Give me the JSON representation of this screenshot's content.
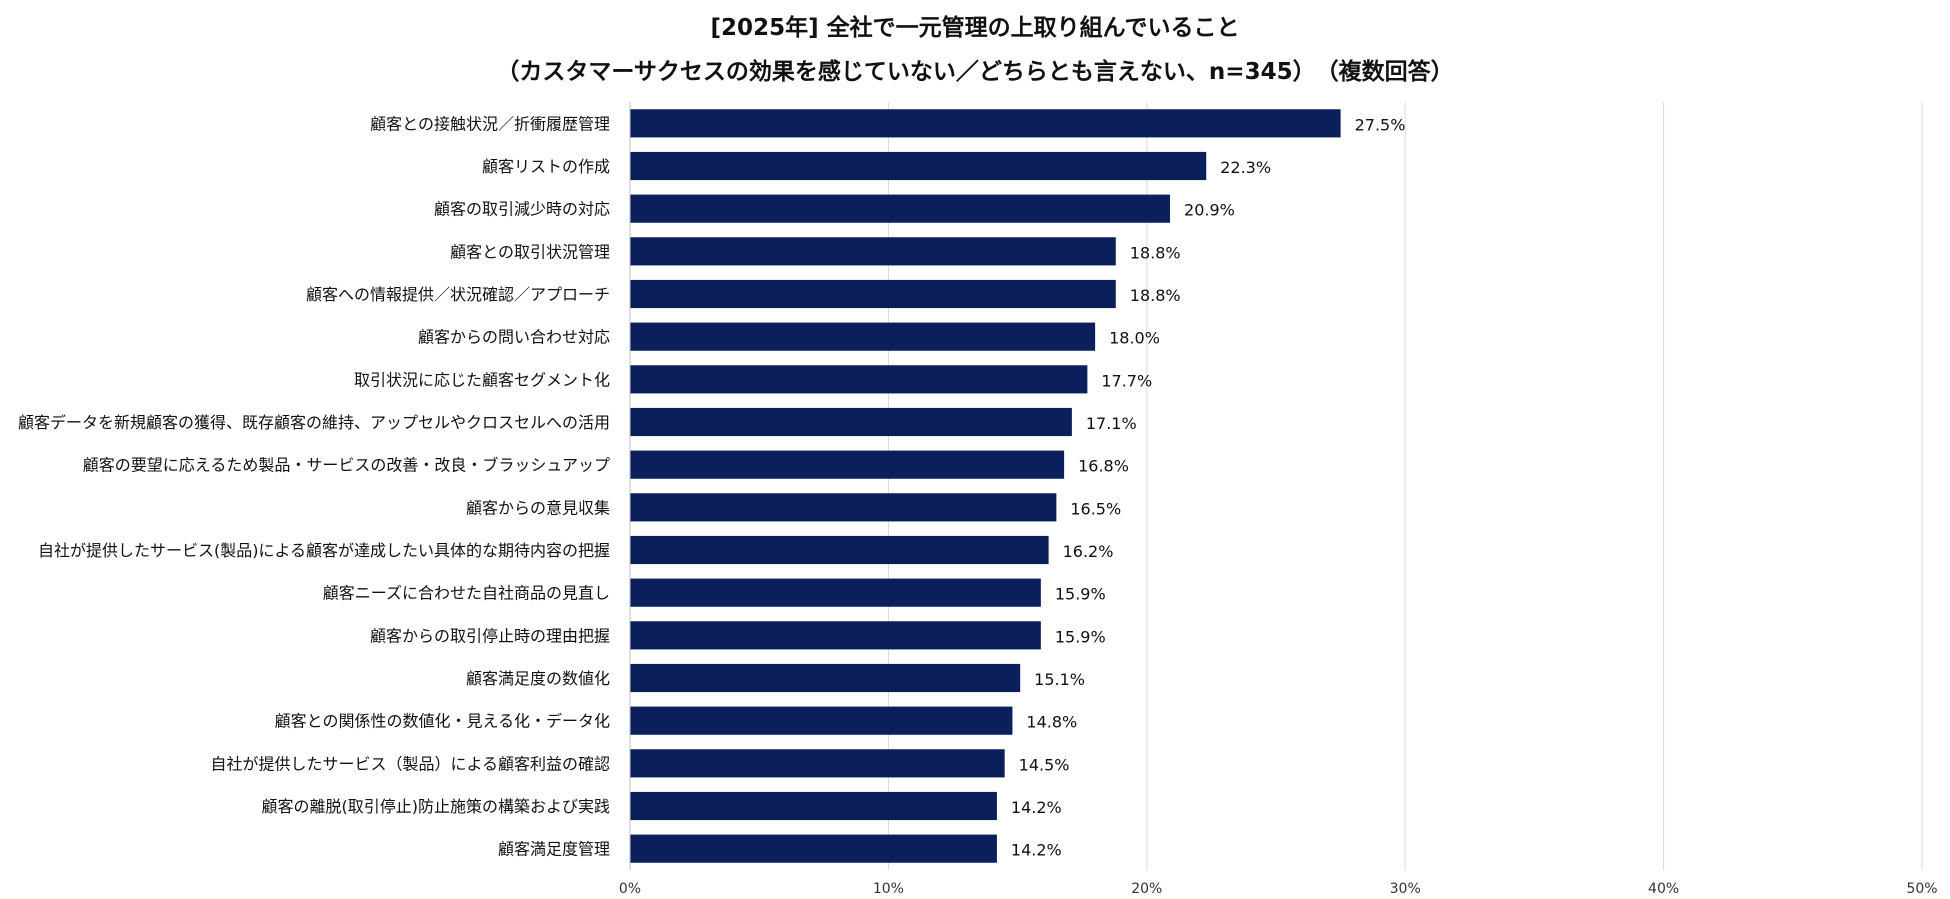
{
  "chart_data": {
    "type": "bar",
    "orientation": "horizontal",
    "title": "[2025年] 全社で一元管理の上取り組んでいること",
    "subtitle": "（カスタマーサクセスの効果を感じていない／どちらとも言えない、n=345）　（複数回答）",
    "categories": [
      "顧客との接触状況／折衝履歴管理",
      "顧客リストの作成",
      "顧客の取引減少時の対応",
      "顧客との取引状況管理",
      "顧客への情報提供／状況確認／アプローチ",
      "顧客からの問い合わせ対応",
      "取引状況に応じた顧客セグメント化",
      "顧客データを新規顧客の獲得、既存顧客の維持、アップセルやクロスセルへの活用",
      "顧客の要望に応えるため製品・サービスの改善・改良・ブラッシュアップ",
      "顧客からの意見収集",
      "自社が提供したサービス(製品)による顧客が達成したい具体的な期待内容の把握",
      "顧客ニーズに合わせた自社商品の見直し",
      "顧客からの取引停止時の理由把握",
      "顧客満足度の数値化",
      "顧客との関係性の数値化・見える化・データ化",
      "自社が提供したサービス（製品）による顧客利益の確認",
      "顧客の離脱(取引停止)防止施策の構築および実践",
      "顧客満足度管理"
    ],
    "values": [
      27.5,
      22.3,
      20.9,
      18.8,
      18.8,
      18.0,
      17.7,
      17.1,
      16.8,
      16.5,
      16.2,
      15.9,
      15.9,
      15.1,
      14.8,
      14.5,
      14.2,
      14.2
    ],
    "value_labels": [
      "27.5%",
      "22.3%",
      "20.9%",
      "18.8%",
      "18.8%",
      "18.0%",
      "17.7%",
      "17.1%",
      "16.8%",
      "16.5%",
      "16.2%",
      "15.9%",
      "15.9%",
      "15.1%",
      "14.8%",
      "14.5%",
      "14.2%",
      "14.2%"
    ],
    "xlim": [
      0,
      50
    ],
    "xticks": [
      0,
      10,
      20,
      30,
      40,
      50
    ],
    "xtick_labels": [
      "0%",
      "10%",
      "20%",
      "30%",
      "40%",
      "50%"
    ],
    "xlabel": "",
    "ylabel": "",
    "grid": true,
    "colors": {
      "bar": "#0a1f5c",
      "grid": "#d9d9d9"
    }
  }
}
